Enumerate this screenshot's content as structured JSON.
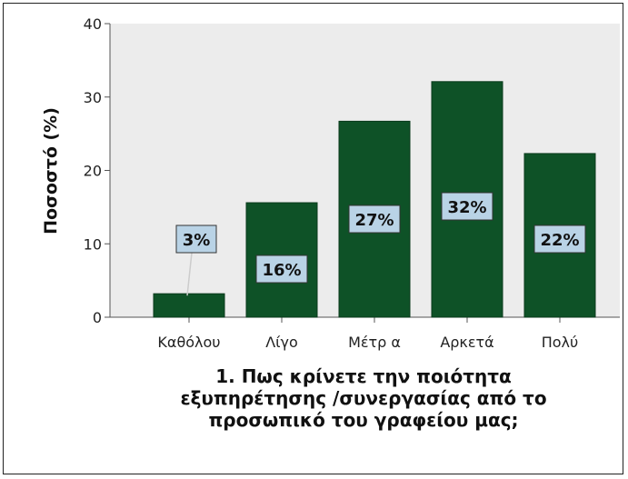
{
  "chart_data": {
    "type": "bar",
    "categories": [
      "Καθόλου",
      "Λίγο",
      "Μέτρ α",
      "Αρκετά",
      "Πολύ"
    ],
    "values": [
      3.2,
      15.6,
      26.7,
      32.1,
      22.3
    ],
    "data_labels": [
      "3%",
      "16%",
      "27%",
      "32%",
      "22%"
    ],
    "title": "",
    "xlabel": [
      "1. Πως κρίνετε την ποιότητα",
      "εξυπηρέτησης /συνεργασίας από το",
      "προσωπικό του γραφείου μας;"
    ],
    "ylabel": "Ποσοστό (%)",
    "ylim": [
      0,
      40
    ],
    "yticks": [
      "0",
      "10",
      "20",
      "30",
      "40"
    ],
    "grid": false,
    "colors": {
      "plot_bg": "#ececec",
      "bar_fill": "#0e5227",
      "bar_stroke": "#0a3a1b",
      "label_bg": "#b9d3e6",
      "label_border": "#333333",
      "axis": "#555555"
    }
  }
}
